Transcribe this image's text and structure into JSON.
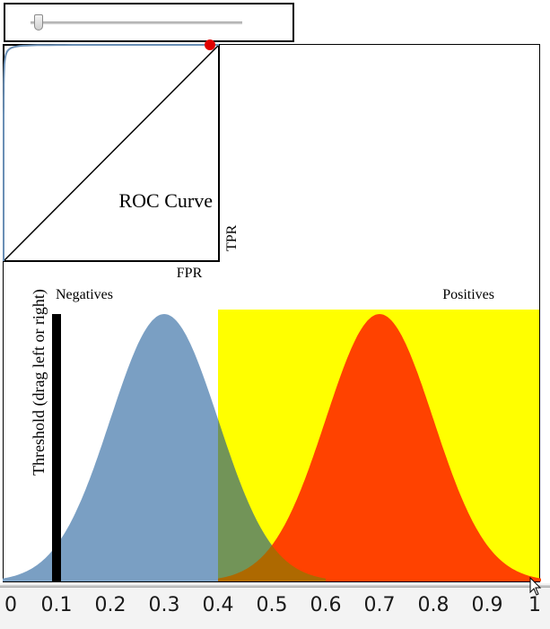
{
  "roc_panel": {
    "title": "ROC Curve",
    "x_label": "FPR",
    "y_label": "TPR"
  },
  "distributions": {
    "negatives_label": "Negatives",
    "positives_label": "Positives",
    "threshold_label": "Threshold (drag left or right)"
  },
  "slider": {
    "value": 0.04
  },
  "threshold": {
    "value": 0.1
  },
  "colors": {
    "negatives": "#7a9fc3",
    "positives": "#ff4200",
    "highlight": "#ffff00",
    "roc_curve": "#6a8fb5",
    "roc_point": "#e00000"
  },
  "chart_data": {
    "type": "area",
    "title": "ROC Curve",
    "xlabel": "",
    "ylabel": "",
    "xlim": [
      0,
      1
    ],
    "x_ticks": [
      "0",
      "0.1",
      "0.2",
      "0.3",
      "0.4",
      "0.5",
      "0.6",
      "0.7",
      "0.8",
      "0.9",
      "1"
    ],
    "series": [
      {
        "name": "Negatives",
        "mean": 0.3,
        "sd": 0.1
      },
      {
        "name": "Positives",
        "mean": 0.7,
        "sd": 0.1
      }
    ],
    "highlight_range": [
      0.4,
      1.0
    ],
    "roc": {
      "xlabel": "FPR",
      "ylabel": "TPR",
      "current_point": {
        "fpr": 1.0,
        "tpr": 1.0
      }
    }
  }
}
